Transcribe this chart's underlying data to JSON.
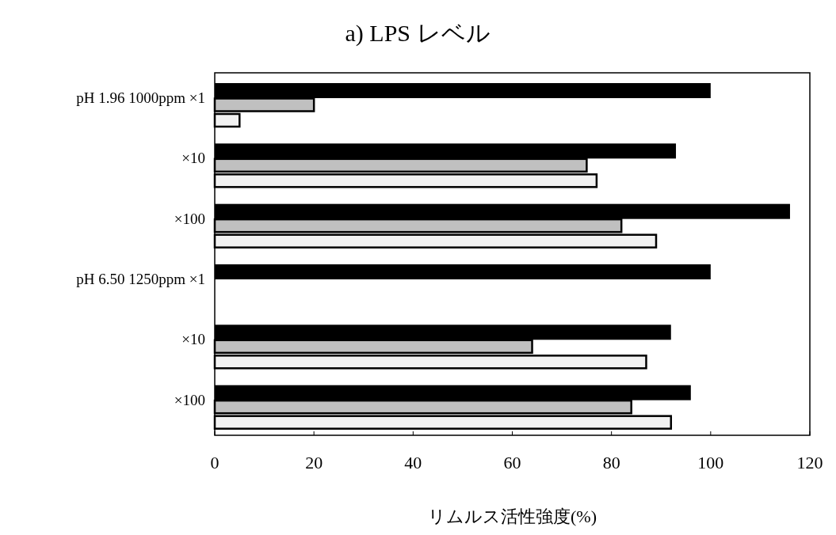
{
  "chart_data": {
    "type": "bar",
    "orientation": "horizontal",
    "title": "a) LPS レベル",
    "xlabel": "リムルス活性強度(%)",
    "categories": [
      "pH 1.96  1000ppm ×1",
      "×10",
      "×100",
      "pH 6.50  1250ppm ×1",
      "×10",
      "×100"
    ],
    "series": [
      {
        "color": "#000000",
        "values": [
          100,
          93,
          116,
          100,
          92,
          96
        ]
      },
      {
        "color": "#c0c0c0",
        "values": [
          20,
          75,
          82,
          null,
          64,
          84
        ]
      },
      {
        "color": "#f2f2f2",
        "values": [
          5,
          77,
          89,
          null,
          87,
          92
        ]
      }
    ],
    "xlim": [
      0,
      120
    ],
    "xticks": [
      0,
      20,
      40,
      60,
      80,
      100,
      120
    ],
    "grid": false
  }
}
